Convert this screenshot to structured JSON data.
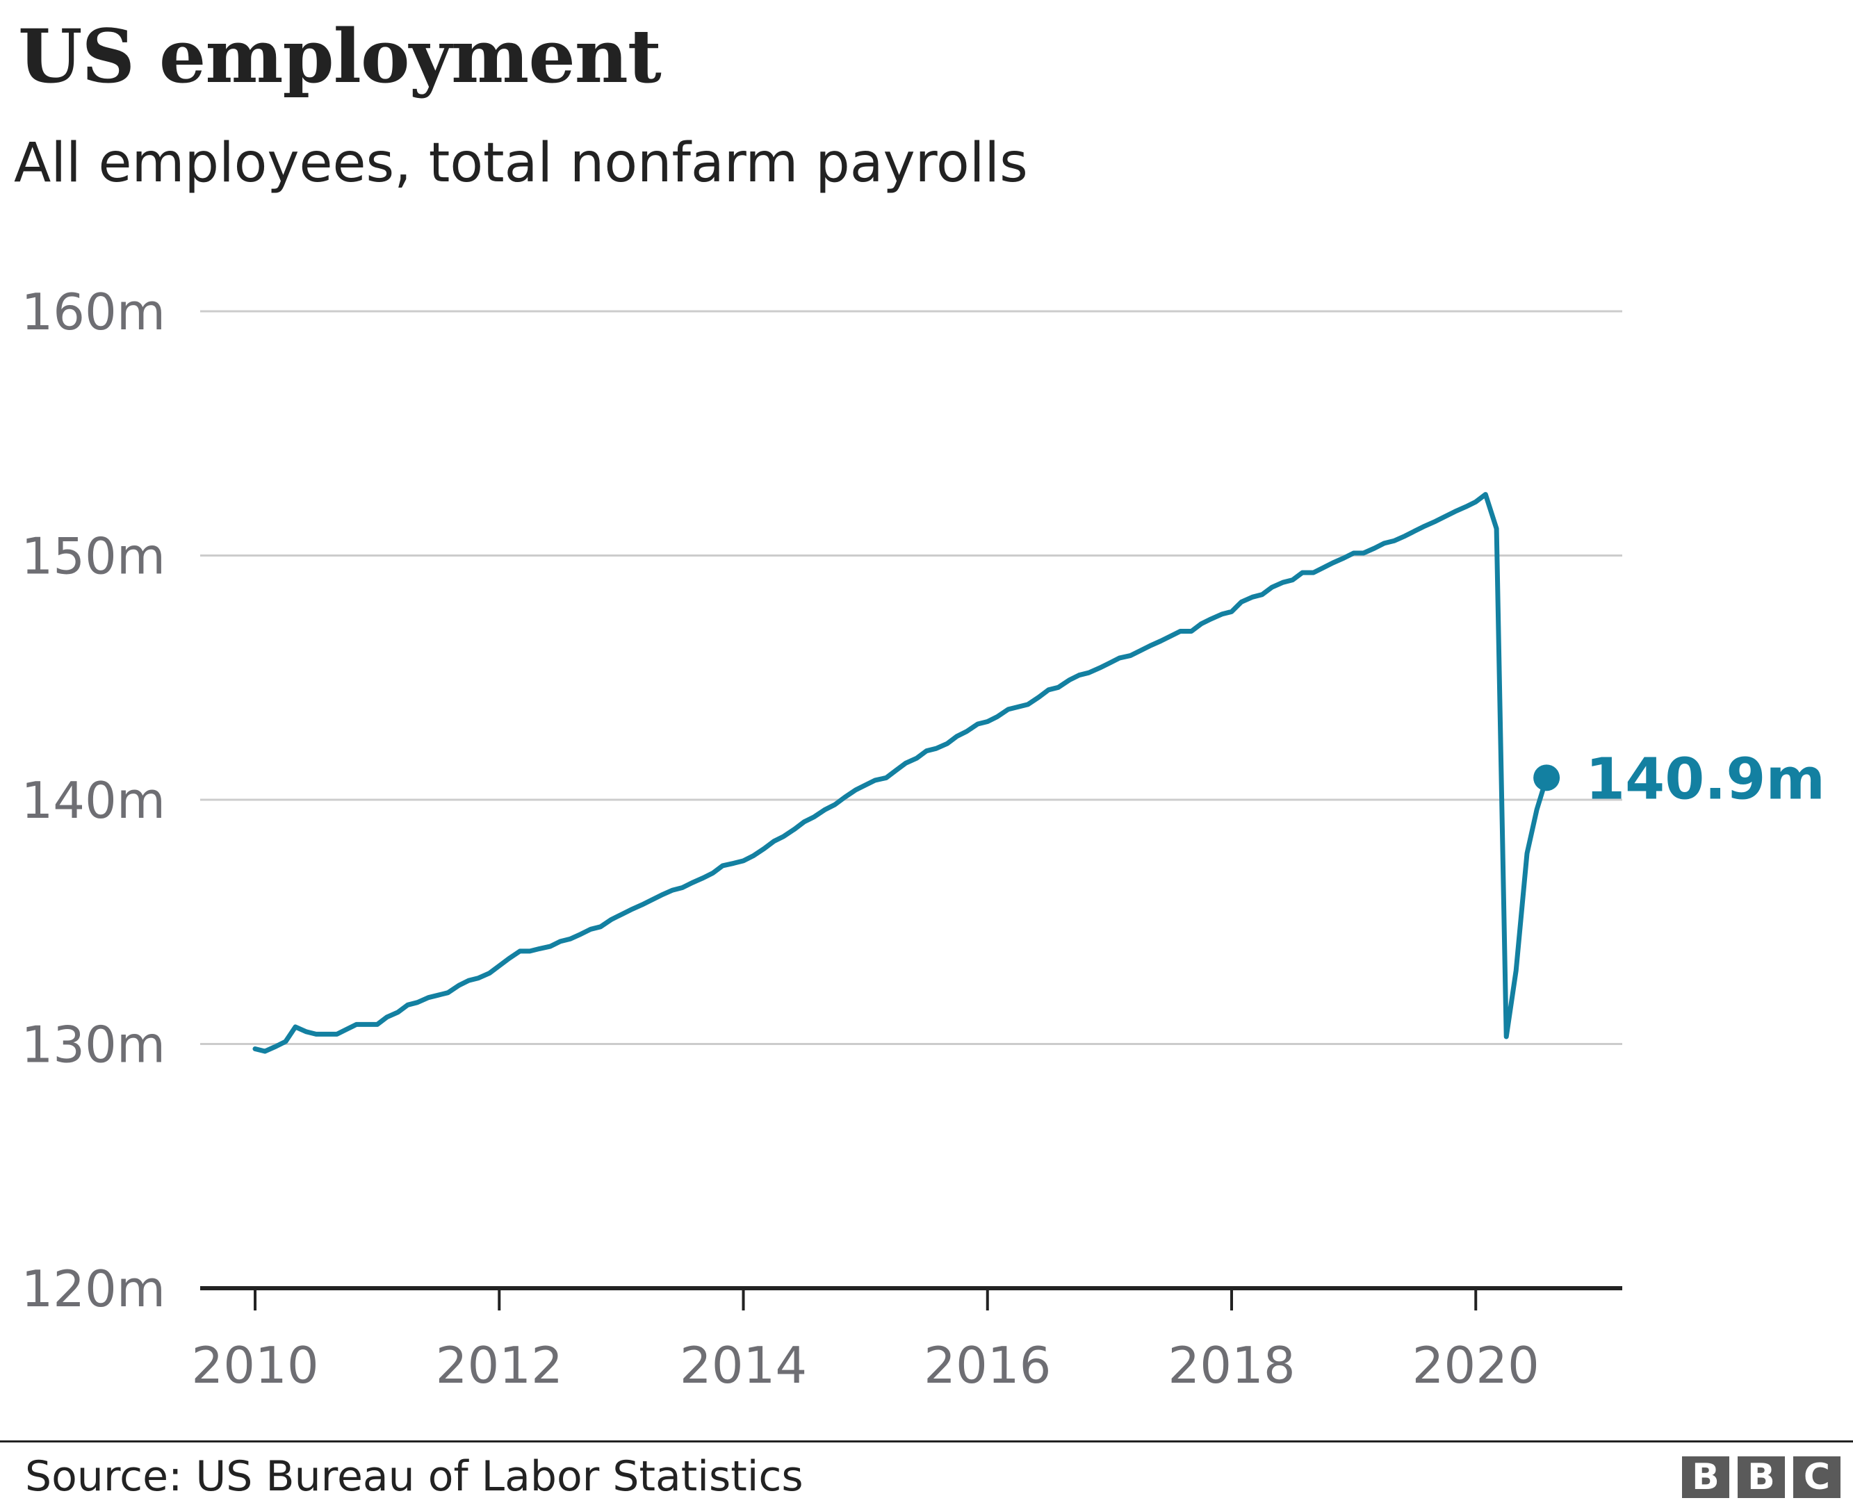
{
  "title": "US employment",
  "subtitle": "All employees, total nonfarm payrolls",
  "source": "Source: US Bureau of Labor Statistics",
  "logo": [
    "B",
    "B",
    "C"
  ],
  "colors": {
    "line": "#1380A1",
    "grid": "#cccccc",
    "axis": "#222222",
    "tick_text": "#6e6e73"
  },
  "chart_data": {
    "type": "line",
    "title": "US employment",
    "subtitle": "All employees, total nonfarm payrolls",
    "xlabel": "",
    "ylabel": "",
    "xlim": [
      2009.55,
      2021.2
    ],
    "ylim": [
      120,
      160
    ],
    "y_ticks": [
      120,
      130,
      140,
      150,
      160
    ],
    "y_tick_labels": [
      "120m",
      "130m",
      "140m",
      "150m",
      "160m"
    ],
    "x_ticks": [
      2010,
      2012,
      2014,
      2016,
      2018,
      2020
    ],
    "x_tick_labels": [
      "2010",
      "2012",
      "2014",
      "2016",
      "2018",
      "2020"
    ],
    "grid": true,
    "end_label": "140.9m",
    "series": [
      {
        "x": [
          2010.0,
          2010.08,
          2010.17,
          2010.25,
          2010.33,
          2010.42,
          2010.5,
          2010.58,
          2010.67,
          2010.75,
          2010.83,
          2010.92,
          2011.0,
          2011.08,
          2011.17,
          2011.25,
          2011.33,
          2011.42,
          2011.5,
          2011.58,
          2011.67,
          2011.75,
          2011.83,
          2011.92,
          2012.0,
          2012.08,
          2012.17,
          2012.25,
          2012.33,
          2012.42,
          2012.5,
          2012.58,
          2012.67,
          2012.75,
          2012.83,
          2012.92,
          2013.0,
          2013.08,
          2013.17,
          2013.25,
          2013.33,
          2013.42,
          2013.5,
          2013.58,
          2013.67,
          2013.75,
          2013.83,
          2013.92,
          2014.0,
          2014.08,
          2014.17,
          2014.25,
          2014.33,
          2014.42,
          2014.5,
          2014.58,
          2014.67,
          2014.75,
          2014.83,
          2014.92,
          2015.0,
          2015.08,
          2015.17,
          2015.25,
          2015.33,
          2015.42,
          2015.5,
          2015.58,
          2015.67,
          2015.75,
          2015.83,
          2015.92,
          2016.0,
          2016.08,
          2016.17,
          2016.25,
          2016.33,
          2016.42,
          2016.5,
          2016.58,
          2016.67,
          2016.75,
          2016.83,
          2016.92,
          2017.0,
          2017.08,
          2017.17,
          2017.25,
          2017.33,
          2017.42,
          2017.5,
          2017.58,
          2017.67,
          2017.75,
          2017.83,
          2017.92,
          2018.0,
          2018.08,
          2018.17,
          2018.25,
          2018.33,
          2018.42,
          2018.5,
          2018.58,
          2018.67,
          2018.75,
          2018.83,
          2018.92,
          2019.0,
          2019.08,
          2019.17,
          2019.25,
          2019.33,
          2019.42,
          2019.5,
          2019.58,
          2019.67,
          2019.75,
          2019.83,
          2019.92,
          2020.0,
          2020.08,
          2020.17,
          2020.25,
          2020.33,
          2020.42,
          2020.5,
          2020.58
        ],
        "values": [
          129.8,
          129.7,
          129.9,
          130.1,
          130.7,
          130.5,
          130.4,
          130.4,
          130.4,
          130.6,
          130.8,
          130.8,
          130.8,
          131.1,
          131.3,
          131.6,
          131.7,
          131.9,
          132.0,
          132.1,
          132.4,
          132.6,
          132.7,
          132.9,
          133.2,
          133.5,
          133.8,
          133.8,
          133.9,
          134.0,
          134.2,
          134.3,
          134.5,
          134.7,
          134.8,
          135.1,
          135.3,
          135.5,
          135.7,
          135.9,
          136.1,
          136.3,
          136.4,
          136.6,
          136.8,
          137.0,
          137.3,
          137.4,
          137.5,
          137.7,
          138.0,
          138.3,
          138.5,
          138.8,
          139.1,
          139.3,
          139.6,
          139.8,
          140.1,
          140.4,
          140.6,
          140.8,
          140.9,
          141.2,
          141.5,
          141.7,
          142.0,
          142.1,
          142.3,
          142.6,
          142.8,
          143.1,
          143.2,
          143.4,
          143.7,
          143.8,
          143.9,
          144.2,
          144.5,
          144.6,
          144.9,
          145.1,
          145.2,
          145.4,
          145.6,
          145.8,
          145.9,
          146.1,
          146.3,
          146.5,
          146.7,
          146.9,
          146.9,
          147.2,
          147.4,
          147.6,
          147.7,
          148.1,
          148.3,
          148.4,
          148.7,
          148.9,
          149.0,
          149.3,
          149.3,
          149.5,
          149.7,
          149.9,
          150.1,
          150.1,
          150.3,
          150.5,
          150.6,
          150.8,
          151.0,
          151.2,
          151.4,
          151.6,
          151.8,
          152.0,
          152.2,
          152.5,
          151.1,
          130.3,
          133.0,
          137.8,
          139.6,
          140.9
        ]
      }
    ]
  }
}
